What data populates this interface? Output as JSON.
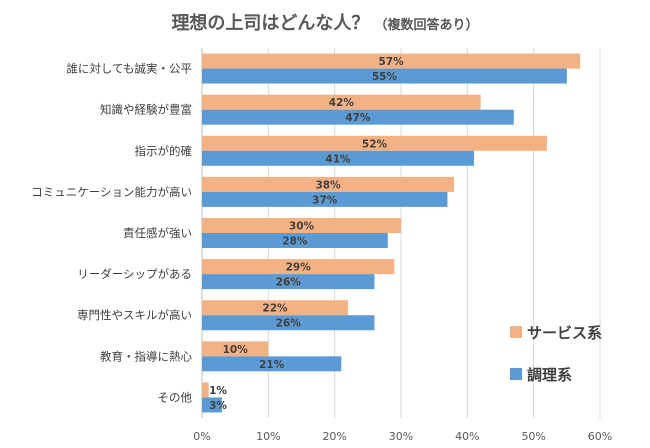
{
  "chart_data": {
    "type": "bar",
    "orientation": "horizontal",
    "title": "理想の上司はどんな人？",
    "subtitle": "（複数回答あり）",
    "categories": [
      "誰に対しても誠実・公平",
      "知識や経験が豊富",
      "指示が的確",
      "コミュニケーション能力が高い",
      "責任感が強い",
      "リーダーシップがある",
      "専門性やスキルが高い",
      "教育・指導に熱心",
      "その他"
    ],
    "series": [
      {
        "name": "サービス系",
        "color": "#F4B183",
        "values": [
          57,
          42,
          52,
          38,
          30,
          29,
          22,
          10,
          1
        ],
        "labels": [
          "57%",
          "42%",
          "52%",
          "38%",
          "30%",
          "29%",
          "22%",
          "10%",
          "1%"
        ]
      },
      {
        "name": "調理系",
        "color": "#5B9BD5",
        "values": [
          55,
          47,
          41,
          37,
          28,
          26,
          26,
          21,
          3
        ],
        "labels": [
          "55%",
          "47%",
          "41%",
          "37%",
          "28%",
          "26%",
          "26%",
          "21%",
          "3%"
        ]
      }
    ],
    "xlim": [
      0,
      60
    ],
    "xticks": [
      "0%",
      "10%",
      "20%",
      "30%",
      "40%",
      "50%",
      "60%"
    ],
    "grid": true,
    "legend_position": "right-bottom"
  }
}
